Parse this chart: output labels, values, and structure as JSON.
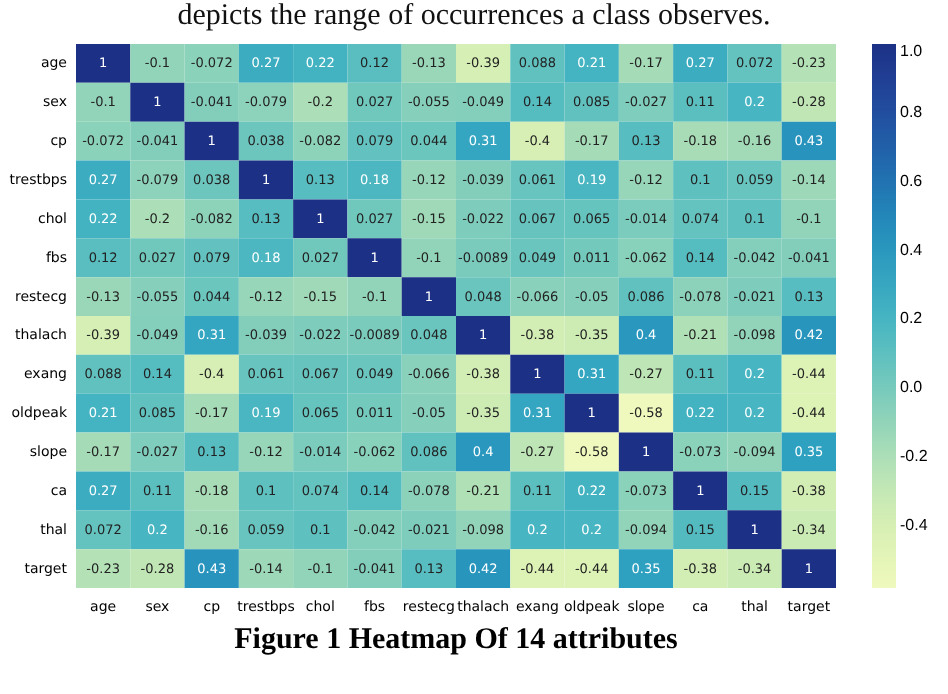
{
  "chart_data": {
    "type": "heatmap",
    "title": "Figure 1 Heatmap Of 14 attributes",
    "annotations": [
      "depicts the range of occurrences a class observes."
    ],
    "categories": [
      "age",
      "sex",
      "cp",
      "trestbps",
      "chol",
      "fbs",
      "restecg",
      "thalach",
      "exang",
      "oldpeak",
      "slope",
      "ca",
      "thal",
      "target"
    ],
    "y_categories": [
      "age",
      "sex",
      "cp",
      "trestbps",
      "chol",
      "fbs",
      "restecg",
      "thalach",
      "exang",
      "oldpeak",
      "slope",
      "ca",
      "thal",
      "target"
    ],
    "cells": [
      [
        1,
        -0.1,
        -0.072,
        0.27,
        0.22,
        0.12,
        -0.13,
        -0.39,
        0.088,
        0.21,
        -0.17,
        0.27,
        0.072,
        -0.23
      ],
      [
        -0.1,
        1,
        -0.041,
        -0.079,
        -0.2,
        0.027,
        -0.055,
        -0.049,
        0.14,
        0.085,
        -0.027,
        0.11,
        0.2,
        -0.28
      ],
      [
        -0.072,
        -0.041,
        1,
        0.038,
        -0.082,
        0.079,
        0.044,
        0.31,
        -0.4,
        -0.17,
        0.13,
        -0.18,
        -0.16,
        0.43
      ],
      [
        0.27,
        -0.079,
        0.038,
        1,
        0.13,
        0.18,
        -0.12,
        -0.039,
        0.061,
        0.19,
        -0.12,
        0.1,
        0.059,
        -0.14
      ],
      [
        0.22,
        -0.2,
        -0.082,
        0.13,
        1,
        0.027,
        -0.15,
        -0.022,
        0.067,
        0.065,
        -0.014,
        0.074,
        0.1,
        -0.1
      ],
      [
        0.12,
        0.027,
        0.079,
        0.18,
        0.027,
        1,
        -0.1,
        -0.0089,
        0.049,
        0.011,
        -0.062,
        0.14,
        -0.042,
        -0.041
      ],
      [
        -0.13,
        -0.055,
        0.044,
        -0.12,
        -0.15,
        -0.1,
        1,
        0.048,
        -0.066,
        -0.05,
        0.086,
        -0.078,
        -0.021,
        0.13
      ],
      [
        -0.39,
        -0.049,
        0.31,
        -0.039,
        -0.022,
        -0.0089,
        0.048,
        1,
        -0.38,
        -0.35,
        0.4,
        -0.21,
        -0.098,
        0.42
      ],
      [
        0.088,
        0.14,
        -0.4,
        0.061,
        0.067,
        0.049,
        -0.066,
        -0.38,
        1,
        0.31,
        -0.27,
        0.11,
        0.2,
        -0.44
      ],
      [
        0.21,
        0.085,
        -0.17,
        0.19,
        0.065,
        0.011,
        -0.05,
        -0.35,
        0.31,
        1,
        -0.58,
        0.22,
        0.2,
        -0.44
      ],
      [
        -0.17,
        -0.027,
        0.13,
        -0.12,
        -0.014,
        -0.062,
        0.086,
        0.4,
        -0.27,
        -0.58,
        1,
        -0.073,
        -0.094,
        0.35
      ],
      [
        0.27,
        0.11,
        -0.18,
        0.1,
        0.074,
        0.14,
        -0.078,
        -0.21,
        0.11,
        0.22,
        -0.073,
        1,
        0.15,
        -0.38
      ],
      [
        0.072,
        0.2,
        -0.16,
        0.059,
        0.1,
        -0.042,
        -0.021,
        -0.098,
        0.2,
        0.2,
        -0.094,
        0.15,
        1,
        -0.34
      ],
      [
        -0.23,
        -0.28,
        0.43,
        -0.14,
        -0.1,
        -0.041,
        0.13,
        0.42,
        -0.44,
        -0.44,
        0.35,
        -0.38,
        -0.34,
        1
      ]
    ],
    "clim": [
      -0.58,
      1
    ],
    "cticks": [
      -0.4,
      -0.2,
      {
        "value": 0,
        "label": "0.0"
      },
      0.2,
      0.4,
      0.6,
      0.8,
      {
        "value": 1,
        "label": "1.0"
      }
    ],
    "data_labels": true
  }
}
